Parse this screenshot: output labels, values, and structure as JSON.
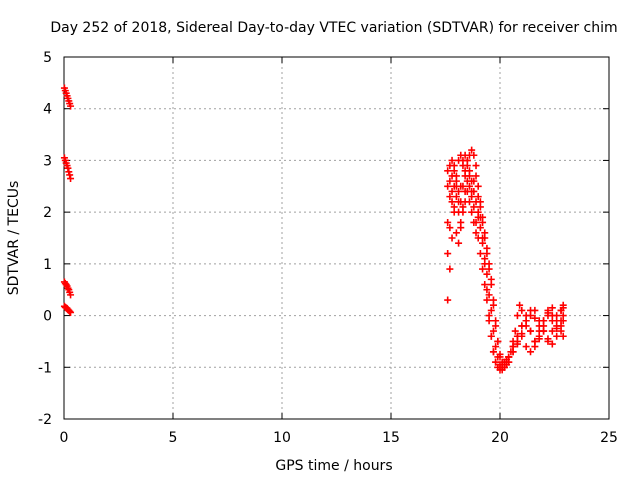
{
  "chart_data": {
    "type": "scatter",
    "title": "Day 252 of 2018, Sidereal Day-to-day VTEC variation (SDTVAR) for receiver chim",
    "xlabel": "GPS time / hours",
    "ylabel": "SDTVAR / TECUs",
    "xlim": [
      0,
      25
    ],
    "ylim": [
      -2,
      5
    ],
    "xticks": [
      "0",
      "5",
      "10",
      "15",
      "20",
      "25"
    ],
    "yticks": [
      "-2",
      "-1",
      "0",
      "1",
      "2",
      "3",
      "4",
      "5"
    ],
    "grid": true,
    "legend": "none",
    "marker": "plus",
    "color": "#ff0000",
    "series": [
      {
        "x": [
          0.02,
          0.06,
          0.1,
          0.14,
          0.18,
          0.22,
          0.26,
          0.3,
          0.02,
          0.06,
          0.1,
          0.14,
          0.18,
          0.22,
          0.26,
          0.3,
          0.02,
          0.06,
          0.1,
          0.14,
          0.18,
          0.22,
          0.26,
          0.3,
          0.02,
          0.06,
          0.1,
          0.14,
          0.18,
          0.22,
          0.26,
          0.3,
          17.6,
          17.7,
          17.8,
          17.9,
          18.0,
          18.1,
          18.2,
          18.3,
          18.4,
          18.5,
          18.6,
          18.7,
          18.8,
          18.9,
          19.0,
          19.1,
          19.2,
          19.3,
          19.4,
          19.5,
          19.6,
          19.7,
          19.8,
          19.9,
          20.0,
          20.1,
          20.2,
          20.3,
          20.4,
          20.5,
          20.6,
          20.7,
          20.8,
          20.9,
          21.0,
          21.2,
          21.4,
          21.6,
          21.8,
          22.0,
          22.2,
          22.4,
          22.6,
          22.8,
          22.9,
          17.6,
          17.7,
          17.8,
          17.9,
          18.0,
          18.1,
          18.2,
          18.3,
          18.4,
          18.5,
          18.6,
          18.7,
          18.8,
          18.9,
          19.0,
          19.1,
          19.2,
          19.3,
          19.4,
          19.5,
          19.6,
          19.7,
          19.8,
          19.9,
          20.0,
          20.1,
          20.2,
          20.3,
          20.4,
          20.6,
          20.8,
          21.0,
          21.2,
          21.4,
          21.6,
          21.8,
          22.0,
          22.2,
          22.4,
          22.6,
          22.8,
          22.9,
          17.6,
          17.7,
          17.8,
          17.9,
          18.0,
          18.1,
          18.2,
          18.3,
          18.4,
          18.5,
          18.6,
          18.7,
          18.8,
          18.9,
          19.0,
          19.1,
          19.2,
          19.3,
          19.4,
          19.5,
          19.6,
          19.7,
          19.8,
          19.9,
          20.0,
          20.1,
          20.2,
          20.4,
          20.6,
          20.8,
          21.0,
          21.2,
          21.4,
          21.6,
          21.8,
          22.0,
          22.2,
          22.4,
          22.6,
          22.8,
          22.9,
          17.6,
          17.7,
          17.8,
          17.9,
          18.0,
          18.1,
          18.2,
          18.3,
          18.4,
          18.5,
          18.6,
          18.7,
          18.8,
          18.9,
          19.0,
          19.1,
          19.2,
          19.3,
          19.4,
          19.5,
          19.6,
          19.7,
          19.8,
          19.9,
          20.0,
          20.1,
          20.2,
          20.3,
          20.4,
          20.6,
          20.8,
          21.0,
          21.2,
          21.4,
          21.6,
          21.8,
          22.0,
          22.2,
          22.4,
          22.6,
          22.8,
          22.9,
          17.6,
          17.7,
          17.8,
          17.9,
          18.0,
          18.1,
          18.2,
          18.3,
          18.4,
          18.5,
          18.6,
          18.7,
          18.8,
          18.9,
          19.0,
          19.1,
          19.2,
          19.3,
          19.4,
          19.5,
          19.6,
          19.7,
          19.8,
          19.9,
          20.0,
          20.1,
          20.2,
          20.4,
          20.6,
          20.8,
          21.0,
          21.2,
          21.4,
          21.6,
          21.8,
          22.0,
          22.2,
          22.4,
          22.6,
          22.8,
          22.9
        ],
        "y": [
          4.4,
          4.35,
          4.3,
          4.25,
          4.2,
          4.15,
          4.1,
          4.05,
          3.05,
          3.0,
          2.95,
          2.9,
          2.85,
          2.78,
          2.72,
          2.65,
          0.65,
          0.62,
          0.6,
          0.57,
          0.53,
          0.5,
          0.45,
          0.4,
          0.18,
          0.16,
          0.15,
          0.14,
          0.12,
          0.1,
          0.08,
          0.06,
          0.3,
          0.9,
          1.5,
          2.1,
          2.6,
          3.0,
          3.1,
          3.0,
          2.7,
          2.9,
          3.1,
          3.2,
          3.1,
          2.7,
          2.3,
          1.9,
          1.5,
          1.0,
          0.5,
          0.0,
          -0.4,
          -0.7,
          -0.9,
          -1.0,
          -1.05,
          -1.0,
          -0.95,
          -0.9,
          -0.8,
          -0.7,
          -0.5,
          -0.3,
          0.0,
          0.2,
          0.1,
          -0.1,
          -0.3,
          -0.5,
          -0.3,
          -0.1,
          0.1,
          0.0,
          -0.2,
          0.1,
          0.2,
          1.2,
          1.7,
          2.2,
          2.5,
          2.3,
          2.0,
          1.8,
          2.1,
          2.4,
          2.6,
          2.5,
          2.3,
          2.1,
          1.8,
          1.5,
          1.2,
          0.9,
          0.6,
          0.3,
          -0.1,
          -0.4,
          -0.7,
          -0.9,
          -1.0,
          -1.0,
          -0.95,
          -0.9,
          -0.85,
          -0.8,
          -0.6,
          -0.4,
          -0.2,
          -0.1,
          -0.3,
          -0.5,
          -0.4,
          -0.2,
          0.0,
          0.15,
          0.0,
          -0.2,
          -0.1,
          1.8,
          2.3,
          2.7,
          2.9,
          2.7,
          2.4,
          2.2,
          2.5,
          2.8,
          3.0,
          2.8,
          2.6,
          2.4,
          2.2,
          2.0,
          1.7,
          1.4,
          1.1,
          0.8,
          0.4,
          0.1,
          -0.3,
          -0.6,
          -0.8,
          -0.95,
          -1.05,
          -1.0,
          -0.9,
          -0.7,
          -0.5,
          -0.35,
          -0.2,
          0.0,
          0.1,
          -0.1,
          -0.3,
          -0.45,
          -0.3,
          -0.1,
          0.1,
          0.15,
          2.8,
          2.6,
          2.4,
          2.0,
          1.6,
          1.4,
          1.7,
          2.0,
          2.2,
          2.4,
          2.2,
          2.0,
          1.8,
          1.6,
          1.9,
          2.1,
          1.8,
          1.5,
          1.2,
          0.9,
          0.6,
          0.2,
          -0.2,
          -0.5,
          -0.8,
          -1.0,
          -1.0,
          -0.95,
          -0.9,
          -0.7,
          -0.55,
          -0.4,
          -0.6,
          -0.7,
          -0.6,
          -0.45,
          -0.3,
          -0.5,
          -0.55,
          -0.4,
          -0.3,
          -0.4,
          2.5,
          2.9,
          3.0,
          2.8,
          2.5,
          2.2,
          2.5,
          2.9,
          3.1,
          3.0,
          2.7,
          2.4,
          2.6,
          2.9,
          2.5,
          2.2,
          1.9,
          1.6,
          1.3,
          1.0,
          0.7,
          0.3,
          -0.1,
          -0.5,
          -0.75,
          -0.9,
          -1.0,
          -0.8,
          -0.6,
          -0.4,
          -0.2,
          0.0,
          0.1,
          -0.05,
          -0.2,
          -0.1,
          0.05,
          -0.1,
          -0.25,
          -0.1,
          0.0
        ]
      }
    ]
  }
}
